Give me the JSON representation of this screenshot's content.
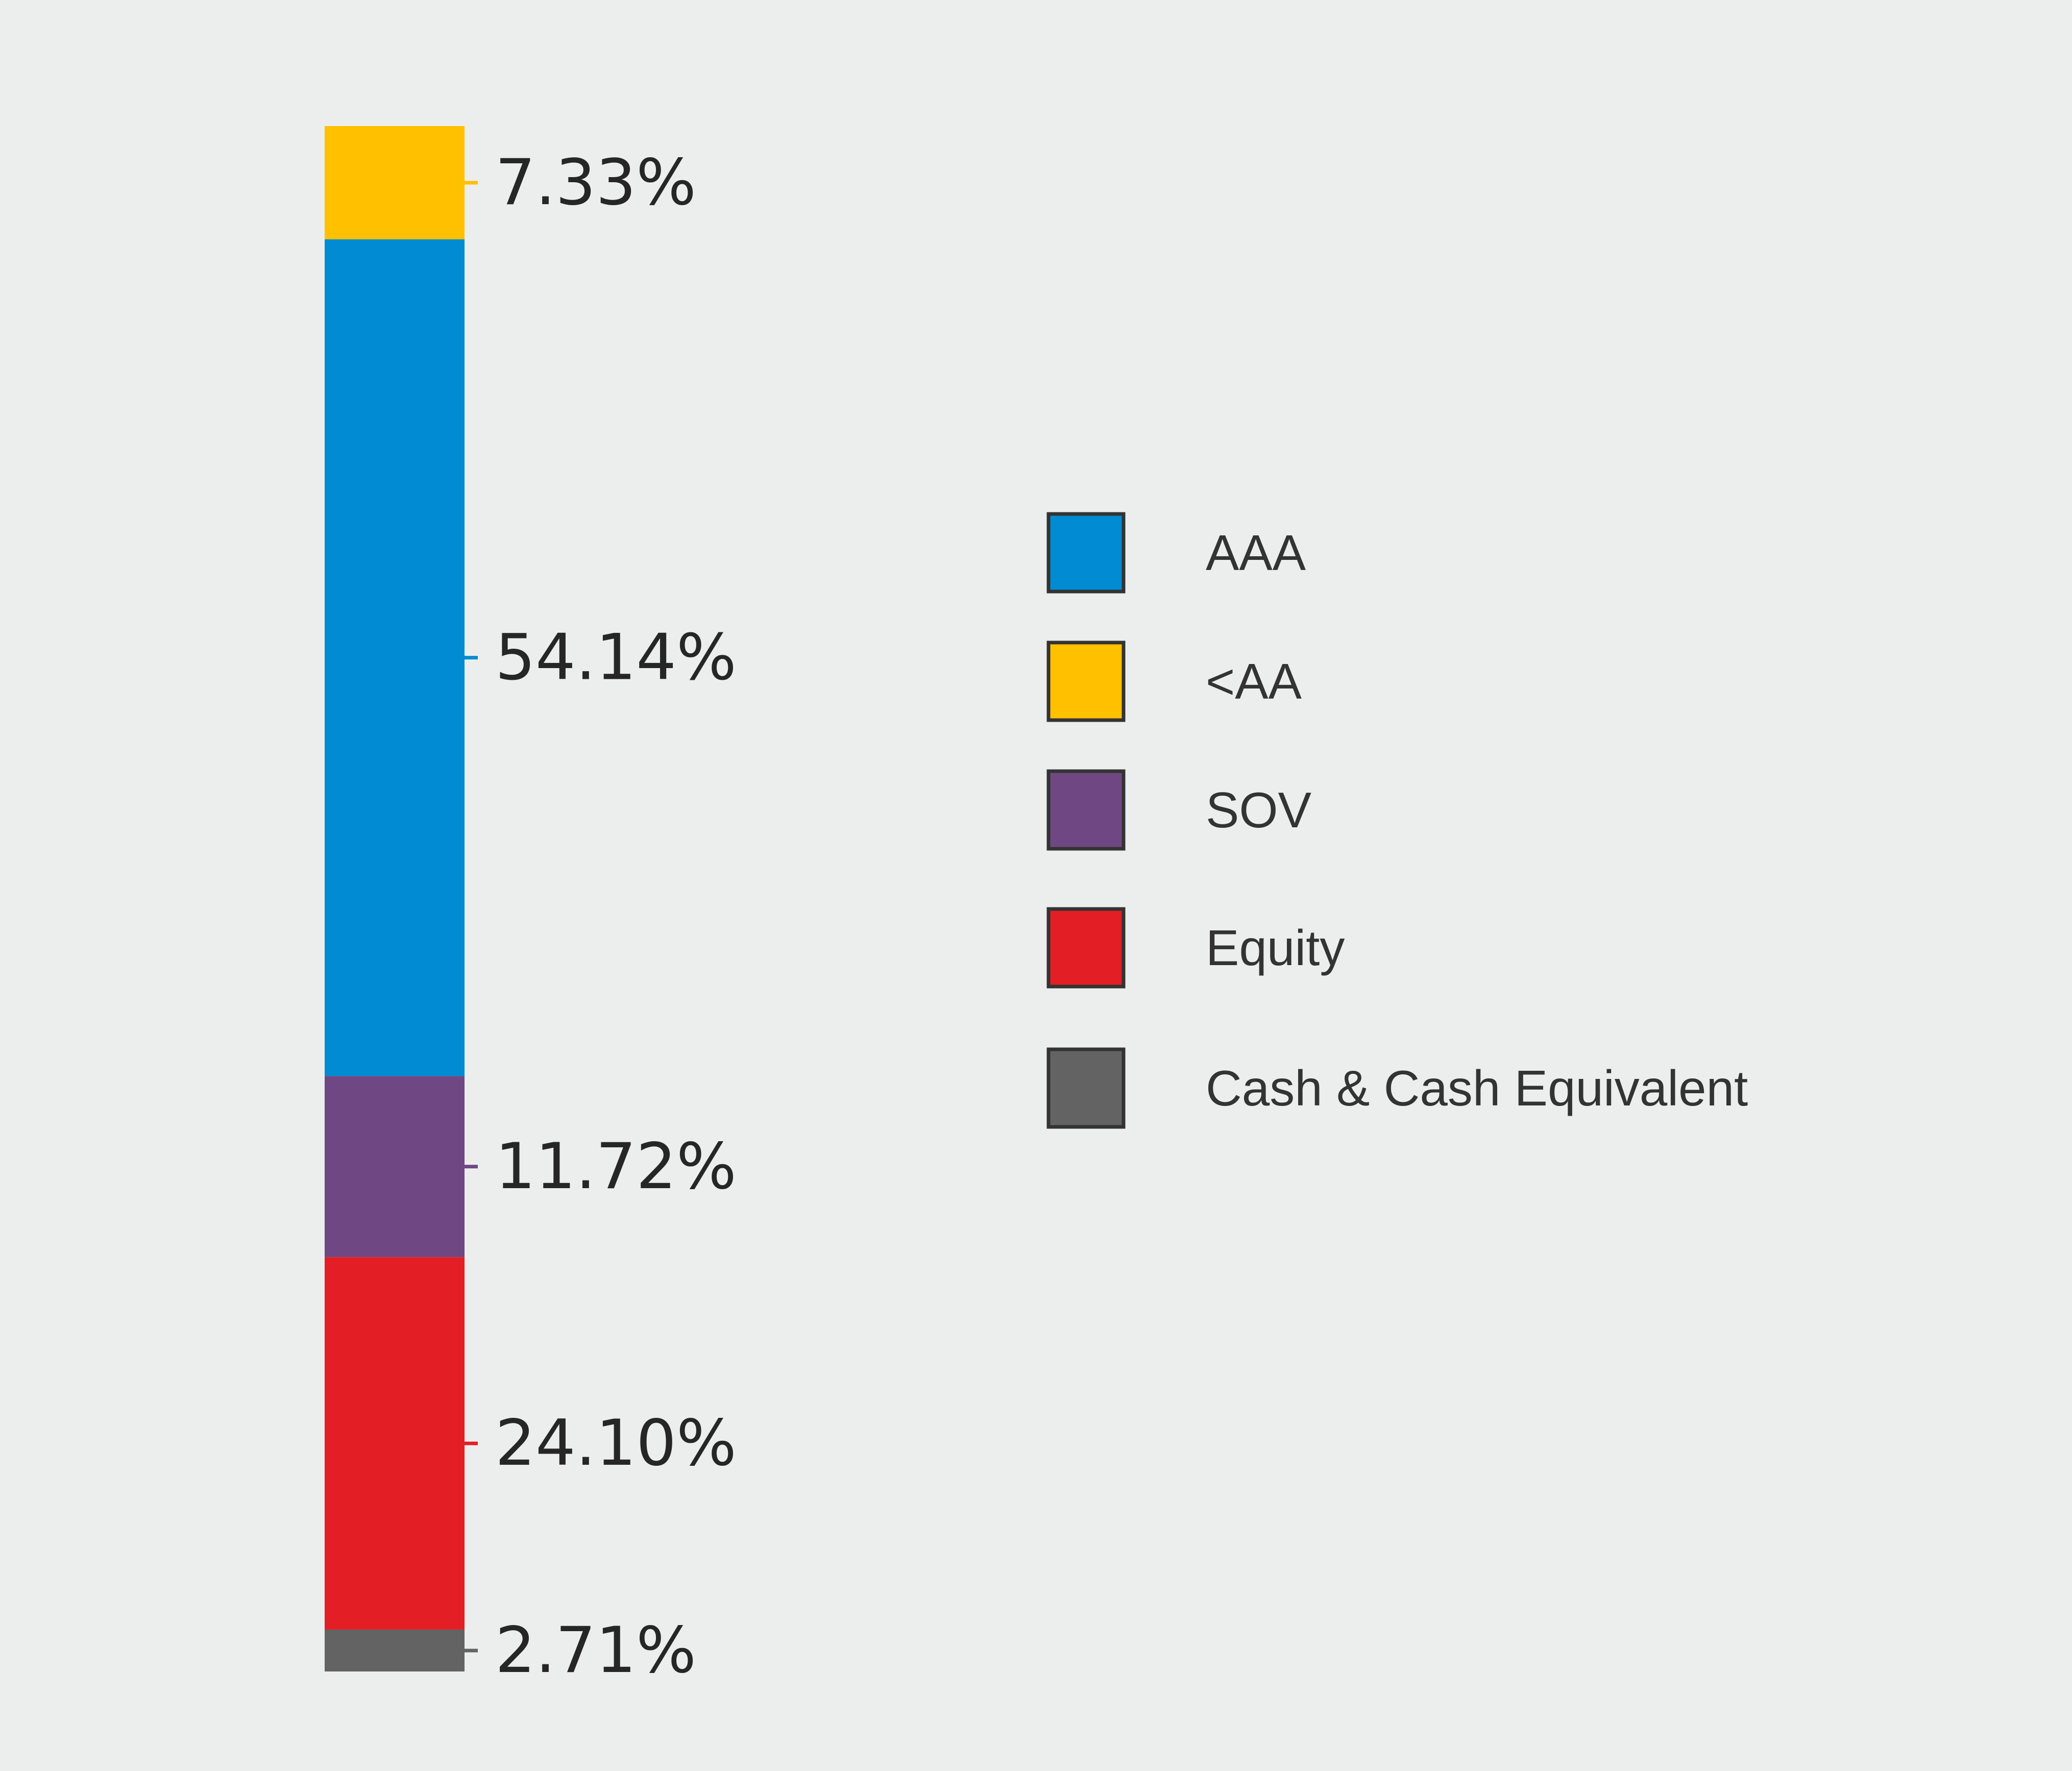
{
  "chart_data": {
    "type": "bar",
    "stacked": true,
    "orientation": "vertical",
    "value_format": "percent",
    "segments": [
      {
        "name": "<AA",
        "value": 7.33,
        "label": "7.33%",
        "color": "#ffc000"
      },
      {
        "name": "AAA",
        "value": 54.14,
        "label": "54.14%",
        "color": "#008bd2"
      },
      {
        "name": "SOV",
        "value": 11.72,
        "label": "11.72%",
        "color": "#6f4883"
      },
      {
        "name": "Equity",
        "value": 24.1,
        "label": "24.10%",
        "color": "#e31e24"
      },
      {
        "name": "Cash & Cash Equivalent",
        "value": 2.71,
        "label": "2.71%",
        "color": "#636363"
      }
    ],
    "legend": {
      "position": "right",
      "entries": [
        {
          "label": "AAA",
          "color": "#008bd2"
        },
        {
          "label": "<AA",
          "color": "#ffc000"
        },
        {
          "label": "SOV",
          "color": "#6f4883"
        },
        {
          "label": "Equity",
          "color": "#e31e24"
        },
        {
          "label": "Cash & Cash Equivalent",
          "color": "#636363"
        }
      ]
    },
    "grid": false
  },
  "colors": {
    "background": "#eceeed",
    "legend_border": "#333333"
  }
}
